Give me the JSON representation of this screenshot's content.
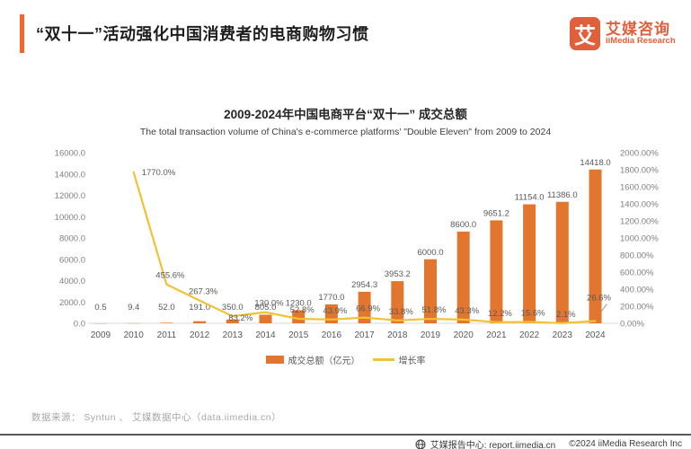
{
  "header": {
    "title": "“双十一”活动强化中国消费者的电商购物习惯",
    "logo": {
      "mark": "艾",
      "name_cn": "艾媒咨询",
      "name_en": "iiMedia Research"
    }
  },
  "chart": {
    "title_cn": "2009-2024年中国电商平台“双十一” 成交总额",
    "title_en": "The total transaction volume of China's e-commerce platforms' \"Double Eleven\" from 2009 to 2024"
  },
  "chart_data": {
    "type": "bar+line combo",
    "categories": [
      "2009",
      "2010",
      "2011",
      "2012",
      "2013",
      "2014",
      "2015",
      "2016",
      "2017",
      "2018",
      "2019",
      "2020",
      "2021",
      "2022",
      "2023",
      "2024"
    ],
    "series": [
      {
        "name": "成交总额（亿元）",
        "type": "bar",
        "axis": "left",
        "color": "#E2762E",
        "values": [
          0.5,
          9.4,
          52.0,
          191.0,
          350.0,
          805.0,
          1230.0,
          1770.0,
          2954.3,
          3953.2,
          6000.0,
          8600.0,
          9651.2,
          11154.0,
          11386.0,
          14418.0
        ]
      },
      {
        "name": "增长率",
        "type": "line",
        "axis": "right",
        "color": "#F1C233",
        "values": [
          null,
          1770.0,
          455.6,
          267.3,
          83.2,
          130.0,
          52.8,
          43.9,
          66.9,
          33.8,
          51.8,
          43.3,
          12.2,
          15.6,
          2.1,
          26.6
        ]
      }
    ],
    "left_axis": {
      "min": 0,
      "max": 16000,
      "step": 2000,
      "format": "one-decimal"
    },
    "right_axis": {
      "min": 0,
      "max": 2000,
      "step": 200,
      "format": "two-decimal-percent"
    },
    "grid": false,
    "legend_position": "bottom",
    "growth_label_hints": {
      "1": {
        "pos": "right"
      },
      "4": {
        "pos": "below"
      },
      "15": {
        "dy": -16,
        "leader": true
      }
    }
  },
  "footer": {
    "source": "数据来源：  Syntun 、 艾媒数据中心（data.iimedia.cn）",
    "report_center": "艾媒报告中心:  report.iimedia.cn",
    "copyright": "©2024   iiMedia Research   Inc"
  },
  "colors": {
    "accent": "#F2662D",
    "bar": "#E2762E",
    "line": "#F1C233",
    "logo": "#E0603C"
  }
}
